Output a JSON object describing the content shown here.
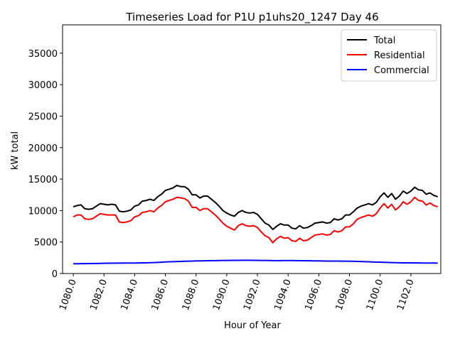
{
  "chart_data": {
    "type": "line",
    "title": "Timeseries Load for P1U p1uhs20_1247  Day 46",
    "xlabel": "Hour of Year",
    "ylabel": "kW total",
    "xlim": [
      1079.3,
      1103.95
    ],
    "ylim": [
      0,
      39500
    ],
    "xticks": [
      1080,
      1082,
      1084,
      1086,
      1088,
      1090,
      1092,
      1094,
      1096,
      1098,
      1100,
      1102
    ],
    "xtick_labels": [
      "1080.0",
      "1082.0",
      "1084.0",
      "1086.0",
      "1088.0",
      "1090.0",
      "1092.0",
      "1094.0",
      "1096.0",
      "1098.0",
      "1100.0",
      "1102.0"
    ],
    "yticks": [
      0,
      5000,
      10000,
      15000,
      20000,
      25000,
      30000,
      35000
    ],
    "ytick_labels": [
      "0",
      "5000",
      "10000",
      "15000",
      "20000",
      "25000",
      "30000",
      "35000"
    ],
    "grid": false,
    "legend_position": "top-right",
    "x": [
      1080.0,
      1080.25,
      1080.5,
      1080.75,
      1081.0,
      1081.25,
      1081.5,
      1081.75,
      1082.0,
      1082.25,
      1082.5,
      1082.75,
      1083.0,
      1083.25,
      1083.5,
      1083.75,
      1084.0,
      1084.25,
      1084.5,
      1084.75,
      1085.0,
      1085.25,
      1085.5,
      1085.75,
      1086.0,
      1086.25,
      1086.5,
      1086.75,
      1087.0,
      1087.25,
      1087.5,
      1087.75,
      1088.0,
      1088.25,
      1088.5,
      1088.75,
      1089.0,
      1089.25,
      1089.5,
      1089.75,
      1090.0,
      1090.25,
      1090.5,
      1090.75,
      1091.0,
      1091.25,
      1091.5,
      1091.75,
      1092.0,
      1092.25,
      1092.5,
      1092.75,
      1093.0,
      1093.25,
      1093.5,
      1093.75,
      1094.0,
      1094.25,
      1094.5,
      1094.75,
      1095.0,
      1095.25,
      1095.5,
      1095.75,
      1096.0,
      1096.25,
      1096.5,
      1096.75,
      1097.0,
      1097.25,
      1097.5,
      1097.75,
      1098.0,
      1098.25,
      1098.5,
      1098.75,
      1099.0,
      1099.25,
      1099.5,
      1099.75,
      1100.0,
      1100.25,
      1100.5,
      1100.75,
      1101.0,
      1101.25,
      1101.5,
      1101.75,
      1102.0,
      1102.25,
      1102.5,
      1102.75,
      1103.0,
      1103.25,
      1103.5,
      1103.75
    ],
    "series": [
      {
        "name": "Total",
        "color": "#000000",
        "values": [
          10600,
          10800,
          10900,
          10300,
          10200,
          10300,
          10700,
          11100,
          11000,
          10900,
          11000,
          10900,
          9900,
          9800,
          9900,
          10100,
          10700,
          10900,
          11500,
          11600,
          11800,
          11600,
          12200,
          12600,
          13200,
          13400,
          13600,
          14000,
          13800,
          13800,
          13400,
          12500,
          12500,
          12000,
          12300,
          12300,
          11800,
          11300,
          10700,
          10000,
          9600,
          9300,
          9100,
          9700,
          10000,
          9700,
          9600,
          9700,
          9400,
          8700,
          8000,
          7700,
          7000,
          7500,
          7900,
          7700,
          7700,
          7200,
          7100,
          7600,
          7200,
          7300,
          7600,
          8000,
          8100,
          8200,
          8000,
          8100,
          8700,
          8500,
          8700,
          9300,
          9300,
          9800,
          10400,
          10700,
          10900,
          11100,
          10900,
          11300,
          12200,
          12800,
          12100,
          12700,
          11800,
          12300,
          13100,
          12700,
          13100,
          13700,
          13300,
          13200,
          12600,
          12800,
          12400,
          12200
        ]
      },
      {
        "name": "Residential",
        "color": "#ff0000",
        "values": [
          9000,
          9300,
          9300,
          8700,
          8600,
          8700,
          9100,
          9500,
          9400,
          9300,
          9300,
          9300,
          8200,
          8100,
          8200,
          8400,
          9000,
          9200,
          9700,
          9800,
          10000,
          9800,
          10400,
          10800,
          11400,
          11600,
          11800,
          12100,
          12000,
          11900,
          11500,
          10500,
          10500,
          10000,
          10300,
          10300,
          9800,
          9300,
          8700,
          8000,
          7500,
          7200,
          6900,
          7600,
          7900,
          7600,
          7500,
          7600,
          7300,
          6600,
          6000,
          5700,
          4900,
          5500,
          5900,
          5600,
          5700,
          5200,
          5100,
          5600,
          5200,
          5300,
          5700,
          6100,
          6200,
          6300,
          6100,
          6200,
          6800,
          6600,
          6800,
          7400,
          7400,
          7900,
          8600,
          8900,
          9100,
          9300,
          9100,
          9500,
          10400,
          11100,
          10400,
          11000,
          10100,
          10600,
          11400,
          11000,
          11400,
          12100,
          11600,
          11500,
          10900,
          11200,
          10800,
          10600
        ]
      },
      {
        "name": "Commercial",
        "color": "#0000ff",
        "values": [
          1550,
          1550,
          1560,
          1570,
          1580,
          1590,
          1600,
          1610,
          1620,
          1630,
          1640,
          1650,
          1650,
          1660,
          1660,
          1670,
          1670,
          1680,
          1690,
          1700,
          1720,
          1740,
          1760,
          1790,
          1830,
          1860,
          1880,
          1900,
          1920,
          1940,
          1960,
          1980,
          2000,
          2010,
          2020,
          2030,
          2040,
          2050,
          2060,
          2070,
          2080,
          2085,
          2090,
          2095,
          2100,
          2100,
          2100,
          2095,
          2090,
          2080,
          2070,
          2060,
          2050,
          2050,
          2050,
          2060,
          2060,
          2060,
          2050,
          2040,
          2030,
          2030,
          2020,
          2010,
          2000,
          1990,
          1980,
          1980,
          1970,
          1970,
          1960,
          1960,
          1950,
          1940,
          1920,
          1900,
          1880,
          1860,
          1840,
          1820,
          1800,
          1780,
          1760,
          1740,
          1720,
          1710,
          1700,
          1690,
          1690,
          1680,
          1680,
          1670,
          1670,
          1660,
          1660,
          1650
        ]
      }
    ]
  }
}
